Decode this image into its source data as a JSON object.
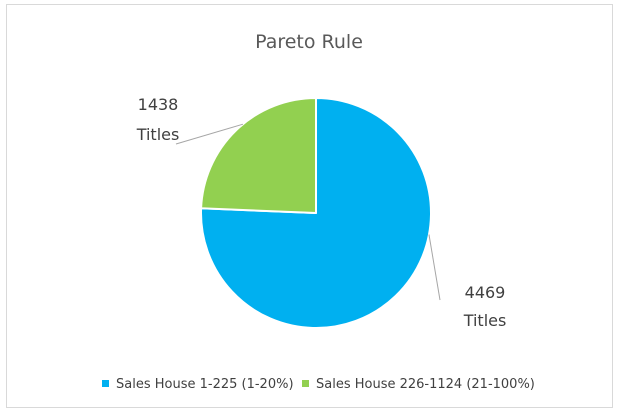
{
  "chart_data": {
    "type": "pie",
    "title": "Pareto Rule",
    "categories": [
      "Sales House 1-225 (1-20%)",
      "Sales House 226-1124 (21-100%)"
    ],
    "values": [
      4469,
      1438
    ],
    "colors": [
      "#00b0f0",
      "#92d050"
    ],
    "data_labels": [
      {
        "line1": "4469",
        "line2": "Titles"
      },
      {
        "line1": "1438",
        "line2": "Titles"
      }
    ],
    "legend_position": "bottom",
    "start_angle_deg": 0,
    "direction": "clockwise"
  }
}
